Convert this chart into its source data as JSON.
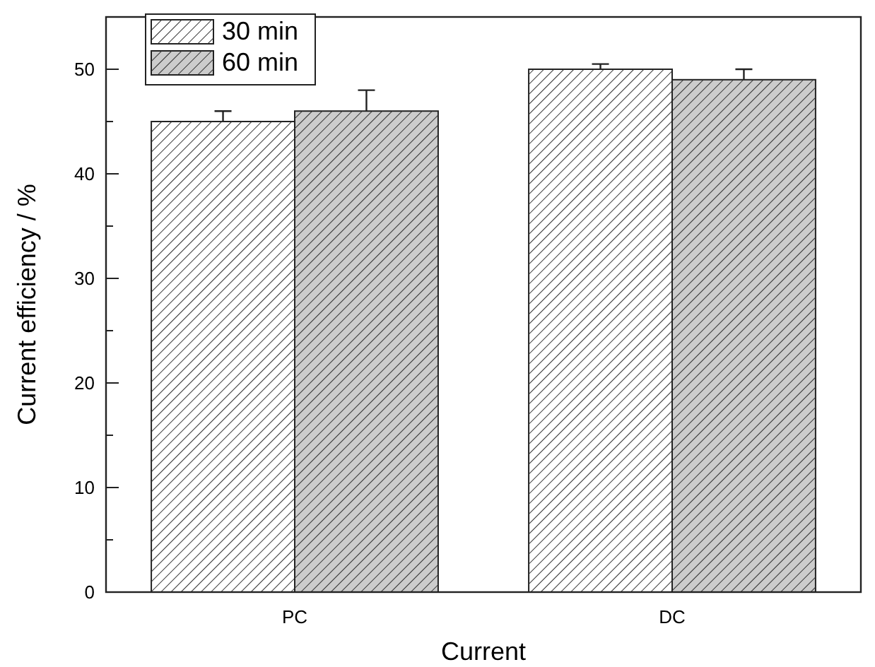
{
  "chart_data": {
    "type": "bar",
    "xlabel": "Current",
    "ylabel": "Current efficiency / %",
    "categories": [
      "PC",
      "DC"
    ],
    "series": [
      {
        "name": "30 min",
        "color": "#ffffff",
        "values": [
          45,
          50
        ],
        "errors": [
          1,
          0.5
        ]
      },
      {
        "name": "60 min",
        "color": "#cccccc",
        "values": [
          46,
          49
        ],
        "errors": [
          2,
          1
        ]
      }
    ],
    "ylim": [
      0,
      55
    ],
    "yticks": [
      0,
      {
        "value": 5,
        "label": null
      },
      10,
      {
        "value": 15,
        "label": null
      },
      20,
      {
        "value": 25,
        "label": null
      },
      30,
      {
        "value": 35,
        "label": null
      },
      40,
      {
        "value": 45,
        "label": null
      },
      50
    ],
    "legend": "top left",
    "grid": false
  }
}
